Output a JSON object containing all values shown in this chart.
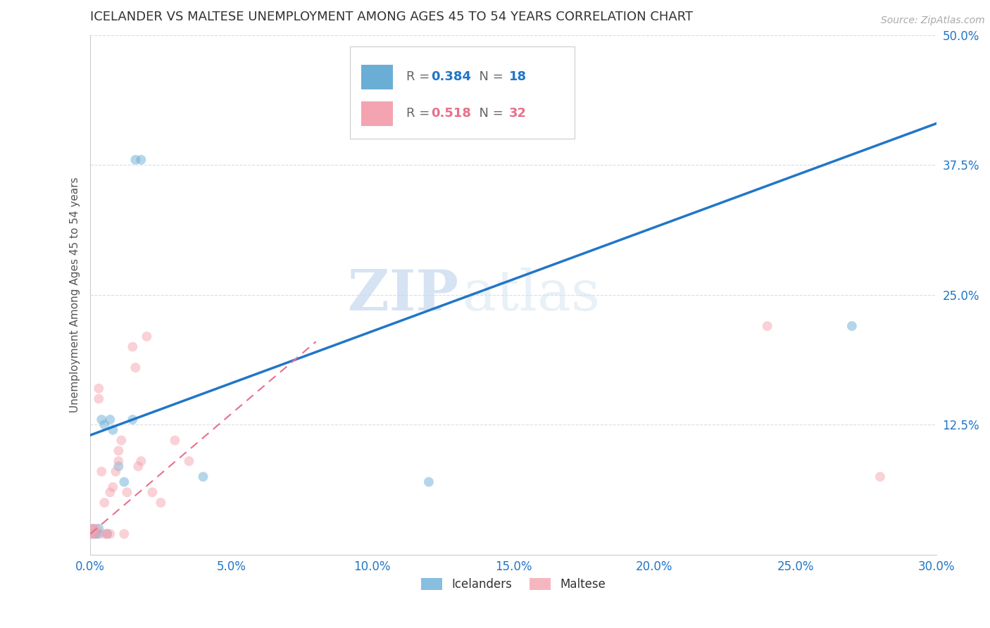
{
  "title": "ICELANDER VS MALTESE UNEMPLOYMENT AMONG AGES 45 TO 54 YEARS CORRELATION CHART",
  "source": "Source: ZipAtlas.com",
  "xlim": [
    0.0,
    0.3
  ],
  "ylim": [
    0.0,
    0.5
  ],
  "ylabel": "Unemployment Among Ages 45 to 54 years",
  "icelander_color": "#6aaed6",
  "maltese_color": "#f4a4b0",
  "icelander_line_color": "#2176c7",
  "maltese_line_color": "#e8708a",
  "icelander_R": 0.384,
  "icelander_N": 18,
  "maltese_R": 0.518,
  "maltese_N": 32,
  "watermark_zip": "ZIP",
  "watermark_atlas": "atlas",
  "icelander_x": [
    0.001,
    0.001,
    0.002,
    0.003,
    0.003,
    0.004,
    0.005,
    0.006,
    0.007,
    0.008,
    0.01,
    0.012,
    0.015,
    0.016,
    0.018,
    0.04,
    0.12,
    0.27
  ],
  "icelander_y": [
    0.02,
    0.025,
    0.02,
    0.02,
    0.025,
    0.13,
    0.125,
    0.02,
    0.13,
    0.12,
    0.085,
    0.07,
    0.13,
    0.38,
    0.38,
    0.075,
    0.07,
    0.22
  ],
  "maltese_x": [
    0.0,
    0.0,
    0.001,
    0.001,
    0.002,
    0.002,
    0.003,
    0.003,
    0.004,
    0.005,
    0.005,
    0.006,
    0.007,
    0.007,
    0.008,
    0.009,
    0.01,
    0.01,
    0.011,
    0.012,
    0.013,
    0.015,
    0.016,
    0.017,
    0.018,
    0.02,
    0.022,
    0.025,
    0.03,
    0.035,
    0.24,
    0.28
  ],
  "maltese_y": [
    0.02,
    0.025,
    0.02,
    0.025,
    0.02,
    0.025,
    0.15,
    0.16,
    0.08,
    0.02,
    0.05,
    0.02,
    0.02,
    0.06,
    0.065,
    0.08,
    0.09,
    0.1,
    0.11,
    0.02,
    0.06,
    0.2,
    0.18,
    0.085,
    0.09,
    0.21,
    0.06,
    0.05,
    0.11,
    0.09,
    0.22,
    0.075
  ],
  "ice_line_x0": 0.0,
  "ice_line_x1": 0.3,
  "ice_line_y0": 0.115,
  "ice_line_y1": 0.415,
  "mal_line_x0": 0.0,
  "mal_line_x1": 0.08,
  "mal_line_y0": 0.02,
  "mal_line_y1": 0.205,
  "bg_color": "#ffffff",
  "grid_color": "#dddddd",
  "legend_icelander_label": "Icelanders",
  "legend_maltese_label": "Maltese",
  "marker_size": 100,
  "marker_alpha": 0.5,
  "x_ticks": [
    0.0,
    0.05,
    0.1,
    0.15,
    0.2,
    0.25,
    0.3
  ],
  "x_tick_labels": [
    "0.0%",
    "5.0%",
    "10.0%",
    "15.0%",
    "20.0%",
    "25.0%",
    "30.0%"
  ],
  "y_ticks": [
    0.0,
    0.125,
    0.25,
    0.375,
    0.5
  ],
  "y_tick_labels": [
    "",
    "12.5%",
    "25.0%",
    "37.5%",
    "50.0%"
  ]
}
